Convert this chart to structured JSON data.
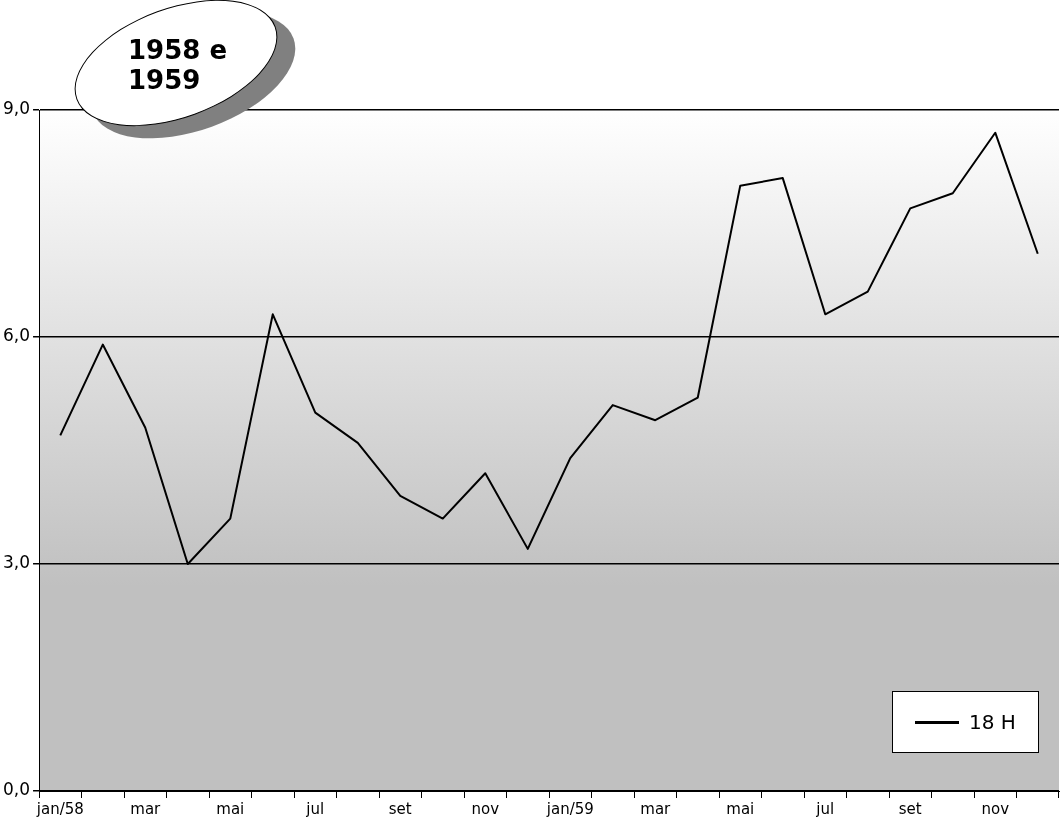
{
  "chart_data": {
    "type": "line",
    "title": "1958 e 1959",
    "categories": [
      "jan/58",
      null,
      "mar",
      null,
      "mai",
      null,
      "jul",
      null,
      "set",
      null,
      "nov",
      null,
      "jan/59",
      null,
      "mar",
      null,
      "mai",
      null,
      "jul",
      null,
      "set",
      null,
      "nov",
      null
    ],
    "series": [
      {
        "name": "18 H",
        "color": "#000000",
        "values": [
          4.7,
          5.9,
          4.8,
          3.0,
          3.6,
          6.3,
          5.0,
          4.6,
          3.9,
          3.6,
          4.2,
          3.2,
          4.4,
          5.1,
          4.9,
          5.2,
          8.0,
          8.1,
          6.3,
          6.6,
          7.7,
          7.9,
          8.7,
          7.1
        ]
      }
    ],
    "ylim": [
      0,
      9
    ],
    "yticks": [
      {
        "value": 0,
        "label": "0,0"
      },
      {
        "value": 3,
        "label": "3,0"
      },
      {
        "value": 6,
        "label": "6,0"
      },
      {
        "value": 9,
        "label": "9,0"
      }
    ],
    "grid": "y",
    "legend": "bottom right",
    "marker": "none",
    "line_style": "solid"
  }
}
